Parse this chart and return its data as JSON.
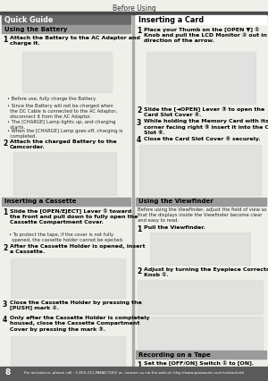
{
  "page_bg": "#f0f0eb",
  "title_text": "Before Using",
  "header_bar_color": "#4a4a4a",
  "footer_bg": "#5a5a5a",
  "footer_text_color": "#ffffff",
  "page_number": "8",
  "footer_text": "For assistance, please call : 1-800-211-PANA(7262) or, contact us via the web at: http://www.panasonic.com/contactinfo",
  "quick_guide_bg": "#6a6a6a",
  "quick_guide_fg": "#ffffff",
  "section_bg": "#9a9a9a",
  "section_fg": "#000000",
  "insert_card_bg": "#ffffff",
  "insert_card_fg": "#000000",
  "img_box_color": "#d8d8d8",
  "divider_color": "#aaaaaa",
  "step_bold_color": "#000000",
  "bullet_color": "#222222",
  "body_color": "#111111"
}
